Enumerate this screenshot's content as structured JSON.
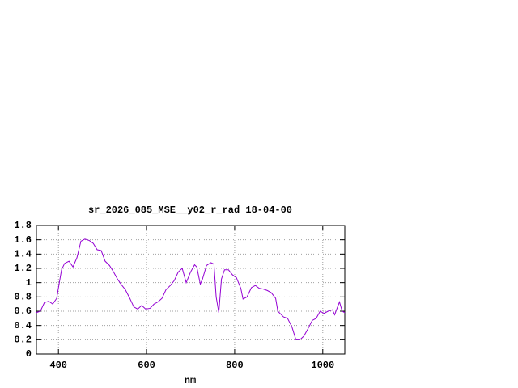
{
  "chart_data": {
    "type": "line",
    "title": "sr_2026_085_MSE__y02_r_rad 18-04-00",
    "x_label": "nm",
    "x": [
      350,
      359,
      368,
      378,
      387,
      396,
      402,
      407,
      414,
      424,
      433,
      442,
      451,
      460,
      470,
      479,
      488,
      497,
      506,
      516,
      525,
      534,
      543,
      552,
      562,
      571,
      580,
      589,
      598,
      608,
      617,
      626,
      635,
      644,
      654,
      663,
      672,
      681,
      690,
      700,
      709,
      714,
      722,
      727,
      736,
      746,
      753,
      758,
      764,
      770,
      777,
      786,
      795,
      804,
      814,
      819,
      828,
      838,
      847,
      856,
      865,
      874,
      883,
      893,
      898,
      911,
      920,
      930,
      939,
      948,
      957,
      966,
      976,
      985,
      994,
      1003,
      1012,
      1022,
      1027,
      1033,
      1038,
      1044,
      1050
    ],
    "series": [
      {
        "name": "sr_2026_085_MSE__y02_r_rad",
        "color": "#9400d3",
        "values": [
          0.58,
          0.6,
          0.72,
          0.74,
          0.7,
          0.78,
          1.0,
          1.18,
          1.27,
          1.3,
          1.22,
          1.35,
          1.58,
          1.61,
          1.59,
          1.55,
          1.46,
          1.45,
          1.3,
          1.24,
          1.15,
          1.05,
          0.97,
          0.9,
          0.78,
          0.66,
          0.63,
          0.68,
          0.63,
          0.64,
          0.7,
          0.73,
          0.78,
          0.9,
          0.96,
          1.03,
          1.15,
          1.2,
          1.0,
          1.15,
          1.25,
          1.22,
          0.98,
          1.05,
          1.24,
          1.28,
          1.26,
          0.8,
          0.58,
          1.05,
          1.18,
          1.18,
          1.11,
          1.07,
          0.92,
          0.77,
          0.8,
          0.93,
          0.96,
          0.92,
          0.91,
          0.89,
          0.86,
          0.78,
          0.6,
          0.52,
          0.5,
          0.38,
          0.2,
          0.2,
          0.25,
          0.35,
          0.47,
          0.5,
          0.6,
          0.57,
          0.6,
          0.62,
          0.55,
          0.65,
          0.73,
          0.6,
          0.58
        ]
      }
    ],
    "xlim": [
      350,
      1050
    ],
    "xticks": [
      400,
      600,
      800,
      1000
    ],
    "ylim": [
      0,
      1.8
    ],
    "yticks": [
      0,
      0.2,
      0.4,
      0.6,
      0.8,
      1,
      1.2,
      1.4,
      1.6,
      1.8
    ],
    "grid": true
  }
}
